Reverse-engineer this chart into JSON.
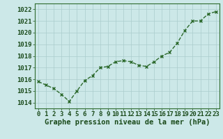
{
  "x": [
    0,
    1,
    2,
    3,
    4,
    5,
    6,
    7,
    8,
    9,
    10,
    11,
    12,
    13,
    14,
    15,
    16,
    17,
    18,
    19,
    20,
    21,
    22,
    23
  ],
  "y": [
    1015.8,
    1015.5,
    1015.2,
    1014.7,
    1014.1,
    1015.0,
    1015.9,
    1016.3,
    1017.0,
    1017.1,
    1017.5,
    1017.6,
    1017.5,
    1017.2,
    1017.1,
    1017.5,
    1018.0,
    1018.3,
    1019.1,
    1020.2,
    1021.0,
    1021.0,
    1021.6,
    1021.8
  ],
  "ylim": [
    1013.5,
    1022.5
  ],
  "xlim": [
    -0.5,
    23.5
  ],
  "yticks": [
    1014,
    1015,
    1016,
    1017,
    1018,
    1019,
    1020,
    1021,
    1022
  ],
  "xticks": [
    0,
    1,
    2,
    3,
    4,
    5,
    6,
    7,
    8,
    9,
    10,
    11,
    12,
    13,
    14,
    15,
    16,
    17,
    18,
    19,
    20,
    21,
    22,
    23
  ],
  "line_color": "#2d6a2d",
  "marker": "x",
  "marker_color": "#2d6a2d",
  "bg_color": "#cce8e8",
  "grid_color": "#aacccc",
  "xlabel": "Graphe pression niveau de la mer (hPa)",
  "xlabel_color": "#1a4a1a",
  "tick_color": "#1a4a1a",
  "xlabel_fontsize": 7.5,
  "tick_fontsize": 6.5,
  "linewidth": 1.0,
  "markersize": 3.5
}
